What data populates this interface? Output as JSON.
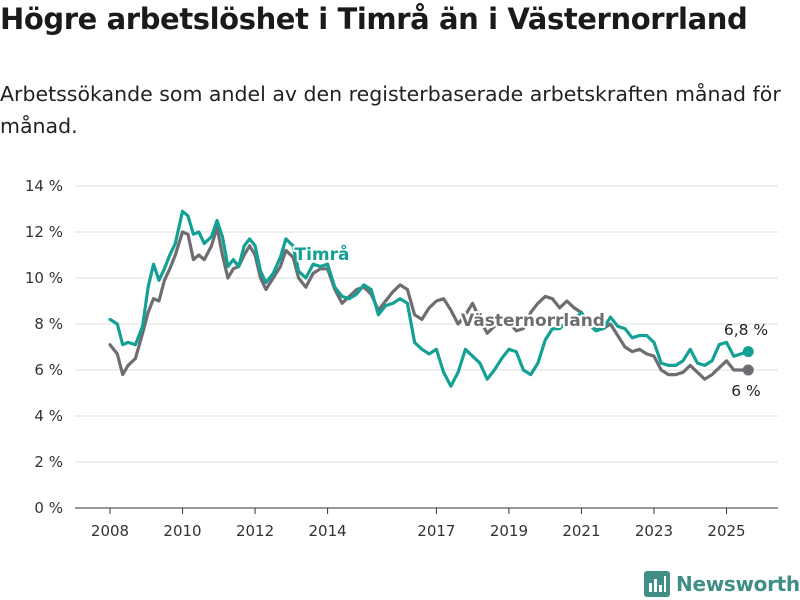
{
  "title": "Högre arbetslöshet i Timrå än i Västernorrland",
  "subtitle": "Arbetssökande som andel av den registerbaserade arbetskraften månad för månad.",
  "brand": "Newsworthy",
  "colors": {
    "timra": "#13a195",
    "vasternorrland": "#6e6e72",
    "brand": "#3f8f86"
  },
  "chart_data": {
    "type": "line",
    "title": "Högre arbetslöshet i Timrå än i Västernorrland",
    "subtitle": "Arbetssökande som andel av den registerbaserade arbetskraften månad för månad.",
    "xlabel": "",
    "ylabel": "",
    "xlim": [
      2007.5,
      2026.5
    ],
    "ylim": [
      0,
      14
    ],
    "yticks": [
      0,
      2,
      4,
      6,
      8,
      10,
      12,
      14
    ],
    "ytick_labels": [
      "0 %",
      "2 %",
      "4 %",
      "6 %",
      "8 %",
      "10 %",
      "12 %",
      "14 %"
    ],
    "xticks": [
      2008,
      2010,
      2012,
      2014,
      2017,
      2019,
      2021,
      2023,
      2025
    ],
    "xtick_labels": [
      "2008",
      "2010",
      "2012",
      "2014",
      "2017",
      "2019",
      "2021",
      "2023",
      "2025"
    ],
    "grid": true,
    "legend": "inline labels",
    "series": [
      {
        "name": "Timrå",
        "color": "#13a195",
        "end_label": "6,8 %",
        "x": [
          2008.0,
          2008.2,
          2008.35,
          2008.5,
          2008.7,
          2008.9,
          2009.05,
          2009.2,
          2009.35,
          2009.5,
          2009.65,
          2009.8,
          2010.0,
          2010.15,
          2010.3,
          2010.45,
          2010.6,
          2010.8,
          2010.95,
          2011.1,
          2011.25,
          2011.4,
          2011.55,
          2011.7,
          2011.85,
          2012.0,
          2012.15,
          2012.3,
          2012.5,
          2012.7,
          2012.85,
          2013.05,
          2013.2,
          2013.4,
          2013.6,
          2013.8,
          2014.0,
          2014.2,
          2014.4,
          2014.6,
          2014.8,
          2015.0,
          2015.2,
          2015.4,
          2015.6,
          2015.8,
          2016.0,
          2016.2,
          2016.4,
          2016.6,
          2016.8,
          2017.0,
          2017.2,
          2017.4,
          2017.6,
          2017.8,
          2018.0,
          2018.2,
          2018.4,
          2018.6,
          2018.8,
          2019.0,
          2019.2,
          2019.4,
          2019.6,
          2019.8,
          2020.0,
          2020.2,
          2020.4,
          2020.6,
          2020.8,
          2021.0,
          2021.2,
          2021.4,
          2021.6,
          2021.8,
          2022.0,
          2022.2,
          2022.4,
          2022.6,
          2022.8,
          2023.0,
          2023.2,
          2023.4,
          2023.6,
          2023.8,
          2024.0,
          2024.2,
          2024.4,
          2024.6,
          2024.8,
          2025.0,
          2025.2,
          2025.4,
          2025.6
        ],
        "y": [
          8.2,
          8.0,
          7.1,
          7.2,
          7.1,
          7.9,
          9.6,
          10.6,
          9.9,
          10.4,
          11.0,
          11.5,
          12.9,
          12.7,
          11.9,
          12.0,
          11.5,
          11.8,
          12.5,
          11.8,
          10.5,
          10.8,
          10.5,
          11.4,
          11.7,
          11.4,
          10.3,
          9.8,
          10.2,
          10.9,
          11.7,
          11.4,
          10.3,
          10.0,
          10.6,
          10.5,
          10.6,
          9.6,
          9.2,
          9.1,
          9.3,
          9.7,
          9.5,
          8.4,
          8.8,
          8.9,
          9.1,
          8.9,
          7.2,
          6.9,
          6.7,
          6.9,
          5.9,
          5.3,
          5.9,
          6.9,
          6.6,
          6.3,
          5.6,
          6.0,
          6.5,
          6.9,
          6.8,
          6.0,
          5.8,
          6.3,
          7.3,
          7.8,
          7.8,
          8.1,
          8.2,
          8.5,
          8.0,
          7.7,
          7.8,
          8.3,
          7.9,
          7.8,
          7.4,
          7.5,
          7.5,
          7.2,
          6.3,
          6.2,
          6.2,
          6.4,
          6.9,
          6.3,
          6.2,
          6.4,
          7.1,
          7.2,
          6.6,
          6.7,
          6.8
        ]
      },
      {
        "name": "Västernorrland",
        "color": "#6e6e72",
        "end_label": "6 %",
        "x": [
          2008.0,
          2008.2,
          2008.35,
          2008.5,
          2008.7,
          2008.9,
          2009.05,
          2009.2,
          2009.35,
          2009.5,
          2009.65,
          2009.8,
          2010.0,
          2010.15,
          2010.3,
          2010.45,
          2010.6,
          2010.8,
          2010.95,
          2011.1,
          2011.25,
          2011.4,
          2011.55,
          2011.7,
          2011.85,
          2012.0,
          2012.15,
          2012.3,
          2012.5,
          2012.7,
          2012.85,
          2013.05,
          2013.2,
          2013.4,
          2013.6,
          2013.8,
          2014.0,
          2014.2,
          2014.4,
          2014.6,
          2014.8,
          2015.0,
          2015.2,
          2015.4,
          2015.6,
          2015.8,
          2016.0,
          2016.2,
          2016.4,
          2016.6,
          2016.8,
          2017.0,
          2017.2,
          2017.4,
          2017.6,
          2017.8,
          2018.0,
          2018.2,
          2018.4,
          2018.6,
          2018.8,
          2019.0,
          2019.2,
          2019.4,
          2019.6,
          2019.8,
          2020.0,
          2020.2,
          2020.4,
          2020.6,
          2020.8,
          2021.0,
          2021.2,
          2021.4,
          2021.6,
          2021.8,
          2022.0,
          2022.2,
          2022.4,
          2022.6,
          2022.8,
          2023.0,
          2023.2,
          2023.4,
          2023.6,
          2023.8,
          2024.0,
          2024.2,
          2024.4,
          2024.6,
          2024.8,
          2025.0,
          2025.2,
          2025.4,
          2025.6
        ],
        "y": [
          7.1,
          6.7,
          5.8,
          6.2,
          6.5,
          7.6,
          8.5,
          9.1,
          9.0,
          9.9,
          10.4,
          11.0,
          12.0,
          11.9,
          10.8,
          11.0,
          10.8,
          11.4,
          12.2,
          11.0,
          10.0,
          10.4,
          10.5,
          11.0,
          11.4,
          11.0,
          10.0,
          9.5,
          10.0,
          10.5,
          11.2,
          10.9,
          10.0,
          9.6,
          10.2,
          10.4,
          10.4,
          9.5,
          8.9,
          9.2,
          9.5,
          9.6,
          9.3,
          8.6,
          9.0,
          9.4,
          9.7,
          9.5,
          8.4,
          8.2,
          8.7,
          9.0,
          9.1,
          8.6,
          8.0,
          8.4,
          8.9,
          8.2,
          7.6,
          7.9,
          8.3,
          8.1,
          7.7,
          7.8,
          8.5,
          8.9,
          9.2,
          9.1,
          8.7,
          9.0,
          8.7,
          8.5,
          8.0,
          7.8,
          7.8,
          8.0,
          7.5,
          7.0,
          6.8,
          6.9,
          6.7,
          6.6,
          6.0,
          5.8,
          5.8,
          5.9,
          6.2,
          5.9,
          5.6,
          5.8,
          6.1,
          6.4,
          6.0,
          6.0,
          6.0
        ]
      }
    ]
  }
}
